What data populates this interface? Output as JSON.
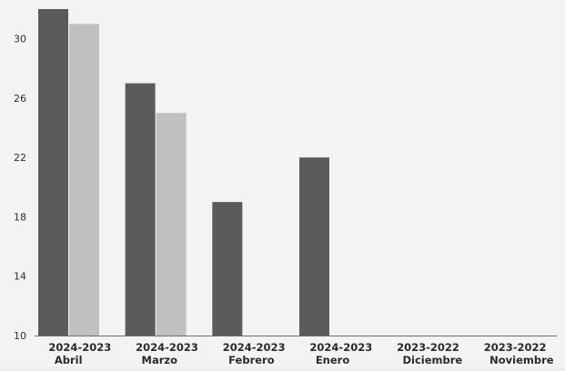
{
  "chart_data": {
    "type": "bar",
    "title": "",
    "xlabel": "",
    "ylabel": "",
    "ylim": [
      10,
      32
    ],
    "yticks": [
      10,
      14,
      18,
      22,
      26,
      30
    ],
    "grid": false,
    "legend": "none",
    "categories": [
      {
        "line1": "2024-2023",
        "line2": "Abril"
      },
      {
        "line1": "2024-2023",
        "line2": "Marzo"
      },
      {
        "line1": "2024-2023",
        "line2": "Febrero"
      },
      {
        "line1": "2024-2023",
        "line2": "Enero"
      },
      {
        "line1": "2023-2022",
        "line2": "Diciembre"
      },
      {
        "line1": "2023-2022",
        "line2": "Noviembre"
      }
    ],
    "series": [
      {
        "values": [
          32,
          27,
          19,
          22,
          null,
          null
        ],
        "color": "#5b5b5b"
      },
      {
        "values": [
          31,
          25,
          null,
          null,
          null,
          null
        ],
        "color": "#bfc1bf"
      }
    ]
  }
}
